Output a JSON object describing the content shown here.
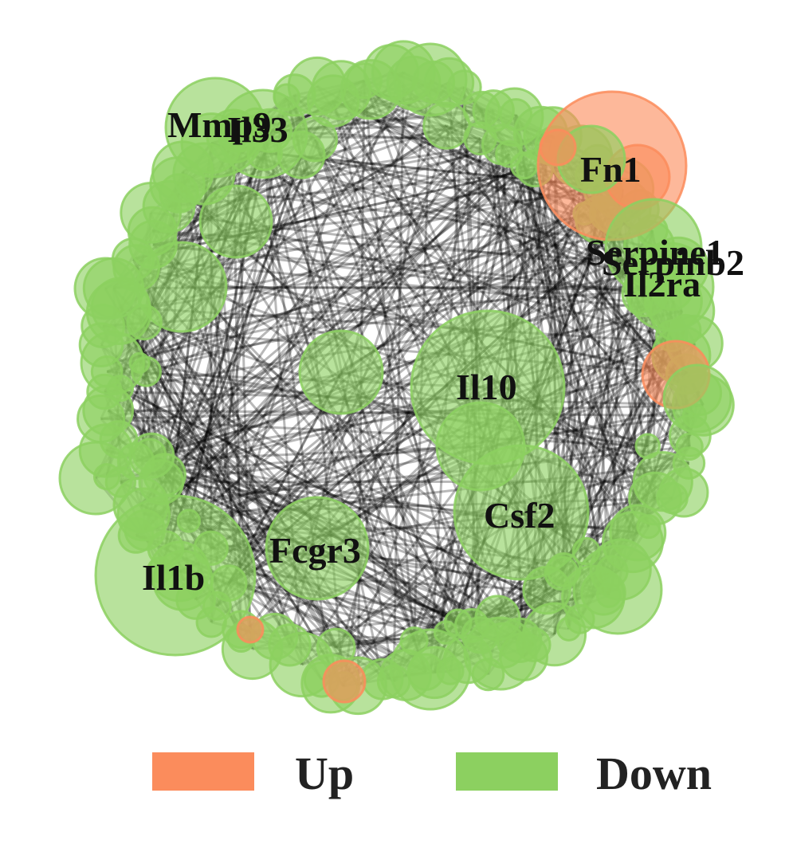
{
  "colors": {
    "up": "#fb8c5c",
    "down": "#8cd060",
    "edge": "#000000"
  },
  "hub_labels": [
    "Mmp9",
    "Il33",
    "Fn1",
    "Serpine1",
    "Serpinb2",
    "Il2ra",
    "Il10",
    "Csf2",
    "Fcgr3",
    "Il1b"
  ],
  "legend": {
    "up": {
      "label": "Up",
      "color": "#fb8c5c"
    },
    "down": {
      "label": "Down",
      "color": "#8cd060"
    }
  }
}
